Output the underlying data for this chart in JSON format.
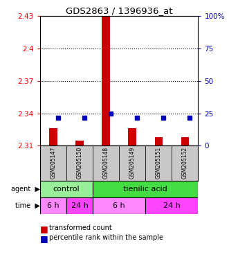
{
  "title": "GDS2863 / 1396936_at",
  "samples": [
    "GSM205147",
    "GSM205150",
    "GSM205148",
    "GSM205149",
    "GSM205151",
    "GSM205152"
  ],
  "red_values": [
    2.326,
    2.315,
    2.455,
    2.326,
    2.318,
    2.318
  ],
  "blue_values": [
    2.336,
    2.336,
    2.34,
    2.336,
    2.336,
    2.336
  ],
  "y_min": 2.31,
  "y_max": 2.43,
  "y_ticks_left": [
    2.31,
    2.34,
    2.37,
    2.4,
    2.43
  ],
  "y_ticks_right_vals": [
    0,
    25,
    50,
    75,
    100
  ],
  "y_ticks_right_labels": [
    "0",
    "25",
    "50",
    "75",
    "100%"
  ],
  "red_color": "#CC0000",
  "blue_color": "#0000BB",
  "bar_width": 0.3,
  "sample_bg": "#C8C8C8",
  "light_green": "#99EE99",
  "dark_green": "#44DD44",
  "light_purple": "#FF88FF",
  "dark_purple": "#FF44FF",
  "dotted_lines": [
    2.34,
    2.37,
    2.4
  ]
}
